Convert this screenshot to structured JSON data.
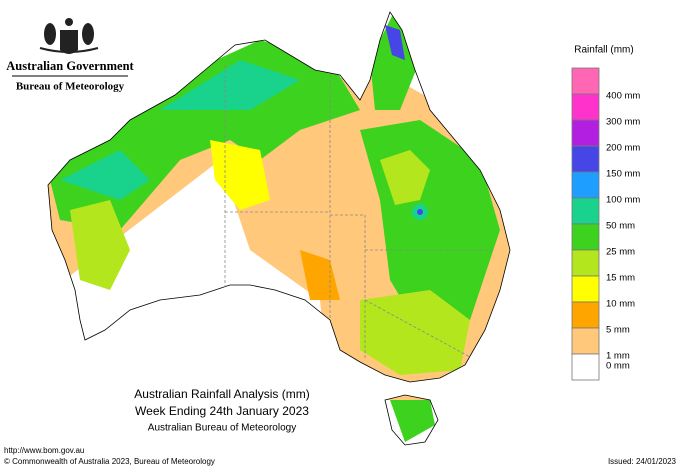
{
  "header": {
    "government": "Australian Government",
    "bureau": "Bureau of Meteorology"
  },
  "legend": {
    "title": "Rainfall (mm)",
    "swatches": [
      "#ff66b3",
      "#ff33cc",
      "#b21fe0",
      "#4646e6",
      "#1e9eff",
      "#19d28c",
      "#3cd21e",
      "#b4e61e",
      "#ffff00",
      "#ffa500",
      "#ffc87a",
      "#ffffff"
    ],
    "labels": [
      "400 mm",
      "300 mm",
      "200 mm",
      "150 mm",
      "100 mm",
      "50 mm",
      "25 mm",
      "15 mm",
      "10 mm",
      "5 mm",
      "1 mm",
      "0 mm"
    ]
  },
  "caption": {
    "title": "Australian Rainfall Analysis (mm)",
    "period": "Week Ending 24th January 2023",
    "source": "Australian Bureau of Meteorology"
  },
  "footer": {
    "url": "http://www.bom.gov.au",
    "copyright": "© Commonwealth of Australia 2023, Bureau of Meteorology",
    "issued": "Issued: 24/01/2023"
  }
}
